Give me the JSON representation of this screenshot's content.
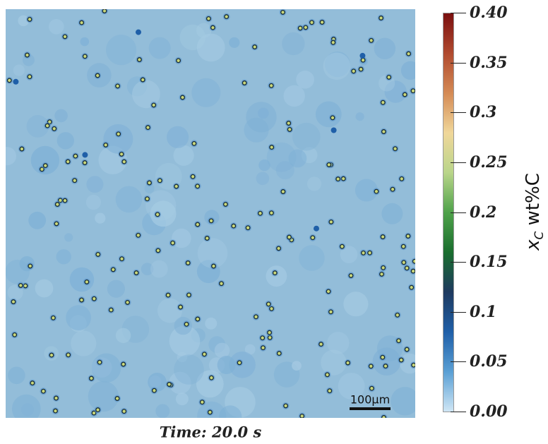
{
  "colorbar": {
    "title_main": "x",
    "title_sub": "C",
    "title_rest": " wt%C",
    "ticks": [
      "0.40",
      "0.35",
      "0.3",
      "0.25",
      "0.2",
      "0.15",
      "0.1",
      "0.05",
      "0.00"
    ],
    "range": [
      0.0,
      0.4
    ],
    "colormap": [
      "#cfe6f5",
      "#5a9fd4",
      "#1f5fa8",
      "#1e3a5f",
      "#1a6e2e",
      "#4fa24a",
      "#b9d58a",
      "#f0d79a",
      "#d48a55",
      "#b04a2f",
      "#7a0f0f"
    ]
  },
  "field": {
    "background_color": "#93bdd9",
    "particle_count": 180
  },
  "scale_bar": {
    "label": "100μm"
  },
  "time_label": "Time: 20.0 s"
}
